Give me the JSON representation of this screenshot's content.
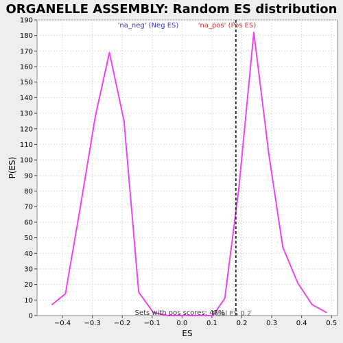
{
  "chart_data": {
    "type": "line",
    "title": "ORGANELLE ASSEMBLY: Random ES distribution",
    "xlabel": "ES",
    "ylabel": "P(ES)",
    "xlim": [
      -0.485,
      0.52
    ],
    "ylim": [
      0,
      190
    ],
    "xticks": [
      -0.4,
      -0.3,
      -0.2,
      -0.1,
      0.0,
      0.1,
      0.2,
      0.3,
      0.4,
      0.5
    ],
    "xtick_labels": [
      "−0.4",
      "−0.3",
      "−0.2",
      "−0.1",
      "0.0",
      "0.1",
      "0.2",
      "0.3",
      "0.4",
      "0.5"
    ],
    "yticks": [
      0,
      10,
      20,
      30,
      40,
      50,
      60,
      70,
      80,
      90,
      100,
      110,
      120,
      130,
      140,
      150,
      160,
      170,
      180,
      190
    ],
    "grid": true,
    "series": [
      {
        "color": "#ee44ee",
        "x": [
          -0.435,
          -0.39,
          -0.34,
          -0.29,
          -0.243,
          -0.194,
          -0.145,
          -0.096,
          -0.047,
          0.003,
          0.053,
          0.103,
          0.143,
          0.19,
          0.24,
          0.29,
          0.337,
          0.387,
          0.435,
          0.483
        ],
        "y": [
          7,
          14,
          70,
          128,
          169,
          125,
          15,
          2,
          0,
          0,
          0,
          0,
          11,
          82,
          182,
          104,
          44,
          21,
          7,
          2
        ]
      }
    ],
    "marker_line": {
      "x": 0.18,
      "style": "dashed",
      "color": "#333333",
      "label": "Real ES 0.2"
    },
    "annotations": {
      "neg": {
        "text": "'na_neg' (Neg ES)",
        "color": "#3333cc"
      },
      "pos": {
        "text": "'na_pos' (Pos ES)",
        "color": "#cc3333"
      },
      "footer": {
        "text": "Sets with pos scores: 47%"
      }
    },
    "colors": {
      "background": "#eeeeee",
      "plot_bg": "#ffffff",
      "grid": "#dddddd"
    }
  }
}
